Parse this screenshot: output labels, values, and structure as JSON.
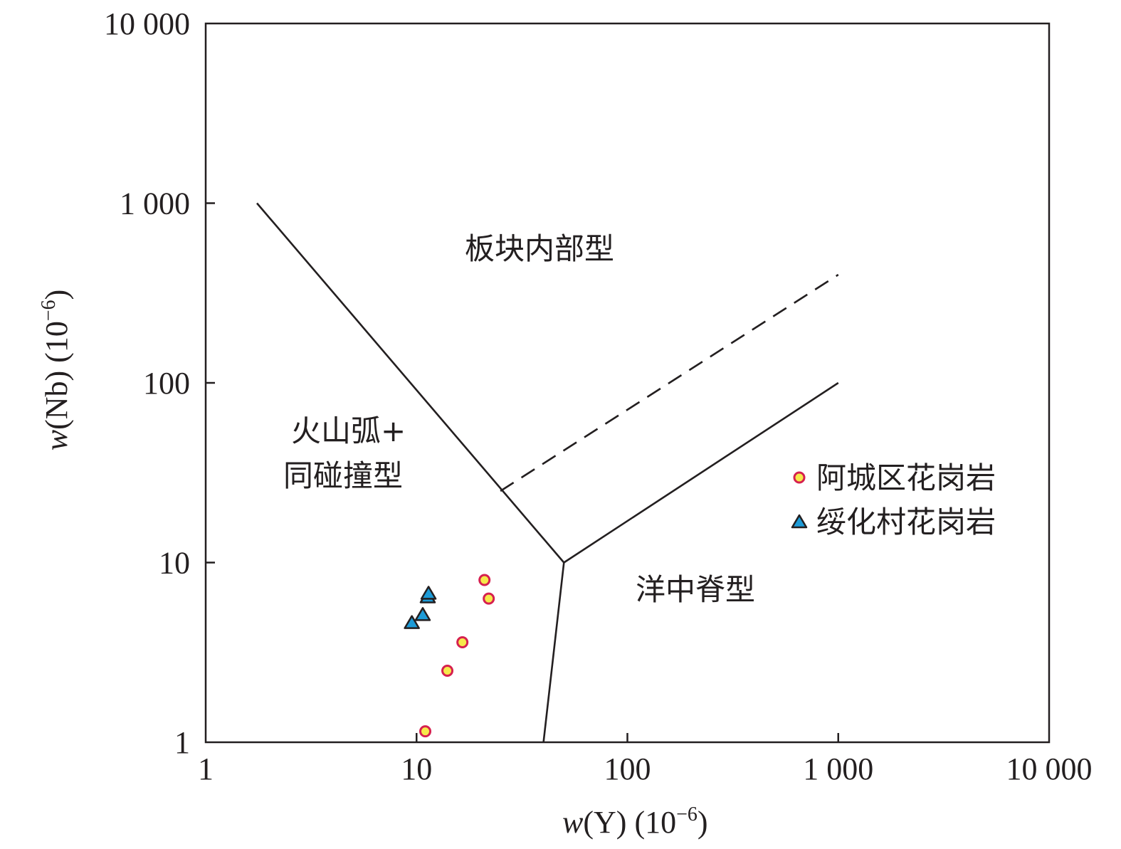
{
  "chart_data": {
    "type": "scatter",
    "x_scale": "log",
    "y_scale": "log",
    "xlim": [
      1,
      10000
    ],
    "ylim": [
      1,
      10000
    ],
    "x_ticks": [
      {
        "value": 1,
        "label": "1"
      },
      {
        "value": 10,
        "label": "10"
      },
      {
        "value": 100,
        "label": "100"
      },
      {
        "value": 1000,
        "label": "1 000"
      },
      {
        "value": 10000,
        "label": "10 000"
      }
    ],
    "y_ticks": [
      {
        "value": 1,
        "label": "1"
      },
      {
        "value": 10,
        "label": "10"
      },
      {
        "value": 100,
        "label": "100"
      },
      {
        "value": 1000,
        "label": "1 000"
      },
      {
        "value": 10000,
        "label": "10 000"
      }
    ],
    "xlabel": {
      "italic": "w",
      "rest": "(Y) (10",
      "sup": "−6",
      "close": ")"
    },
    "ylabel": {
      "italic": "w",
      "rest": "(Nb) (10",
      "sup": "−6",
      "close": ")"
    },
    "grid": false,
    "legend_position": "right",
    "regions": {
      "wpg": "板块内部型",
      "vag_line1": "火山弧+",
      "vag_line2": "同碰撞型",
      "org": "洋中脊型"
    },
    "boundaries": [
      {
        "style": "solid",
        "points": [
          [
            1.75,
            1000
          ],
          [
            50,
            10
          ]
        ]
      },
      {
        "style": "solid",
        "points": [
          [
            50,
            10
          ],
          [
            1000,
            100
          ]
        ]
      },
      {
        "style": "solid",
        "points": [
          [
            50,
            10
          ],
          [
            40,
            1
          ]
        ]
      },
      {
        "style": "dashed",
        "points": [
          [
            25,
            25
          ],
          [
            1000,
            400
          ]
        ]
      }
    ],
    "series": [
      {
        "name": "阿城区花岗岩",
        "marker": "circle",
        "fill": "#f6e94b",
        "stroke": "#d6204f",
        "points": [
          [
            11,
            1.15
          ],
          [
            14,
            2.5
          ],
          [
            16.5,
            3.6
          ],
          [
            21,
            8
          ],
          [
            22,
            6.3
          ]
        ]
      },
      {
        "name": "绥化村花岗岩",
        "marker": "triangle",
        "fill": "#1d9bd7",
        "stroke": "#231f20",
        "points": [
          [
            9.5,
            4.6
          ],
          [
            10.7,
            5.1
          ],
          [
            11.3,
            6.4
          ],
          [
            11.4,
            6.7
          ]
        ]
      }
    ]
  }
}
